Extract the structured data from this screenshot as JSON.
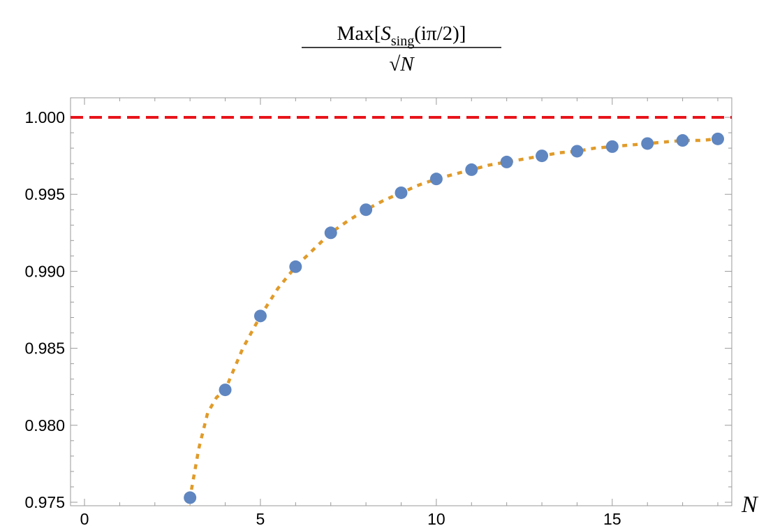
{
  "chart_data": {
    "type": "scatter",
    "title": {
      "numerator_prefix": "Max[",
      "numerator_symbol": "S",
      "numerator_subscript": "sing",
      "numerator_argument": "(iπ/2)]",
      "denominator_radical": "√",
      "denominator_variable": "N"
    },
    "xlabel": "N",
    "ylabel": "",
    "xlim": [
      0,
      18
    ],
    "ylim": [
      0.975,
      1.0
    ],
    "x_ticks": [
      0,
      5,
      10,
      15
    ],
    "x_tick_labels": [
      "0",
      "5",
      "10",
      "15"
    ],
    "y_ticks": [
      0.975,
      0.98,
      0.985,
      0.99,
      0.995,
      1.0
    ],
    "y_tick_labels": [
      "0.975",
      "0.980",
      "0.985",
      "0.990",
      "0.995",
      "1.000"
    ],
    "grid": false,
    "series": [
      {
        "kind": "points",
        "color": "#5f86c0",
        "x": [
          3,
          4,
          5,
          6,
          7,
          8,
          9,
          10,
          11,
          12,
          13,
          14,
          15,
          16,
          17,
          18
        ],
        "y": [
          0.9753,
          0.9823,
          0.9871,
          0.9903,
          0.9925,
          0.994,
          0.9951,
          0.996,
          0.9966,
          0.9971,
          0.9975,
          0.9978,
          0.9981,
          0.9983,
          0.9985,
          0.9986
        ]
      },
      {
        "kind": "fitted-curve",
        "style": "dotted",
        "color": "#e09b2a",
        "x": [
          2.9,
          3,
          3.25,
          3.5,
          3.75,
          4,
          4.5,
          5,
          5.5,
          6,
          6.5,
          7,
          7.5,
          8,
          8.5,
          9,
          9.5,
          10,
          10.5,
          11,
          11.5,
          12,
          12.5,
          13,
          13.5,
          14,
          14.5,
          15,
          15.5,
          16,
          16.5,
          17,
          17.5,
          18
        ],
        "y": [
          0.9738,
          0.9753,
          0.9785,
          0.9808,
          0.9818,
          0.9823,
          0.985,
          0.9871,
          0.9889,
          0.9903,
          0.9914,
          0.9925,
          0.9933,
          0.994,
          0.9946,
          0.9951,
          0.9956,
          0.996,
          0.9963,
          0.9966,
          0.9969,
          0.9971,
          0.9973,
          0.9975,
          0.9977,
          0.9978,
          0.998,
          0.9981,
          0.9982,
          0.9983,
          0.9984,
          0.9985,
          0.9985,
          0.9986
        ]
      },
      {
        "kind": "reference-line",
        "style": "dashed",
        "color": "#e8141b",
        "y": 1.0
      }
    ]
  }
}
